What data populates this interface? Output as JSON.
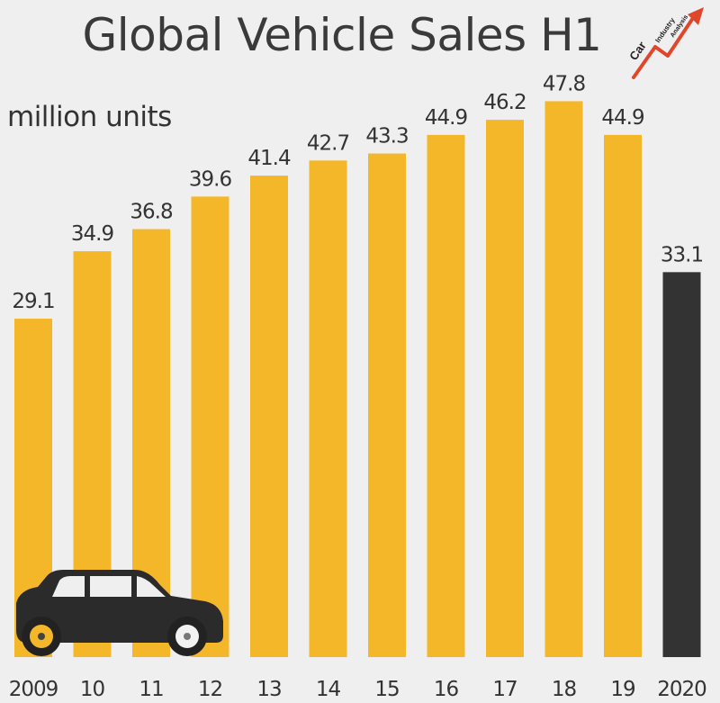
{
  "title": "Global Vehicle Sales H1",
  "unit_label": "million units",
  "logo": {
    "word1": "Car",
    "word2": "Industry",
    "word3": "Analysis"
  },
  "colors": {
    "bar": "#F5B72A",
    "highlight": "#333333",
    "background": "#efefef",
    "car": "#2b2b2b"
  },
  "chart_data": {
    "type": "bar",
    "title": "Global Vehicle Sales H1",
    "ylabel": "million units",
    "categories": [
      "2009",
      "10",
      "11",
      "12",
      "13",
      "14",
      "15",
      "16",
      "17",
      "18",
      "19",
      "2020"
    ],
    "values": [
      29.1,
      34.9,
      36.8,
      39.6,
      41.4,
      42.7,
      43.3,
      44.9,
      46.2,
      47.8,
      44.9,
      33.1
    ],
    "value_labels": [
      "29.1",
      "34.9",
      "36.8",
      "39.6",
      "41.4",
      "42.7",
      "43.3",
      "44.9",
      "46.2",
      "47.8",
      "44.9",
      "33.1"
    ],
    "highlight_index": 11,
    "ylim": [
      0,
      50
    ],
    "grid": false,
    "legend": "none"
  }
}
